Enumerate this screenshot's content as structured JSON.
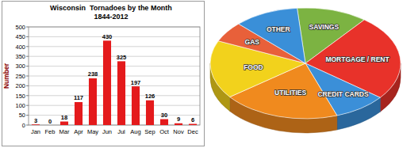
{
  "chart_data": [
    {
      "type": "bar",
      "title": "Wisconsin  Tornadoes by the Month",
      "subtitle": "1844-2012",
      "y_label": "Number",
      "categories": [
        "Jan",
        "Feb",
        "Mar",
        "Apr",
        "May",
        "Jun",
        "Jul",
        "Aug",
        "Sep",
        "Oct",
        "Nov",
        "Dec"
      ],
      "values": [
        3,
        0,
        18,
        117,
        238,
        430,
        325,
        197,
        126,
        30,
        9,
        6
      ],
      "color": "#e41a1c",
      "ylim": [
        0,
        500
      ],
      "yticks": [
        0,
        50,
        100,
        150,
        200,
        250,
        300,
        350,
        400,
        450,
        500
      ],
      "grid": true,
      "data_labels": true
    },
    {
      "type": "pie",
      "categories": [
        "SAVINGS",
        "MORTGAGE / RENT",
        "CREDIT CARDS",
        "UTILITIES",
        "FOOD",
        "GAS",
        "OTHER"
      ],
      "values": [
        12,
        25,
        9,
        20,
        17,
        6,
        11
      ],
      "colors": [
        "#7cb342",
        "#e8322a",
        "#3b8fd8",
        "#f08a1e",
        "#f2d21c",
        "#e8603a",
        "#3a8fd8"
      ]
    }
  ]
}
